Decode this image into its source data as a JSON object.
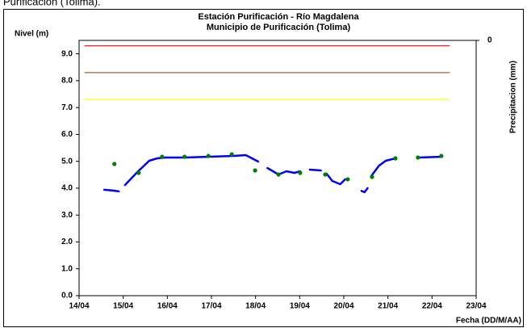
{
  "caption": "Purificación (Tolima).",
  "chart_data": {
    "type": "line",
    "title": [
      "Estación Purificación - Río Magdalena",
      "Municipio de Purificación (Tolima)"
    ],
    "y_label": "Nivel (m)",
    "y2_label": "Precipitacion (mm)",
    "x_label": "Fecha (DD/M/AA)",
    "xlim": [
      14,
      23
    ],
    "xticks": [
      {
        "value": 14,
        "label": "14/04"
      },
      {
        "value": 15,
        "label": "15/04"
      },
      {
        "value": 16,
        "label": "16/04"
      },
      {
        "value": 17,
        "label": "17/04"
      },
      {
        "value": 18,
        "label": "18/04"
      },
      {
        "value": 19,
        "label": "19/04"
      },
      {
        "value": 20,
        "label": "20/04"
      },
      {
        "value": 21,
        "label": "21/04"
      },
      {
        "value": 22,
        "label": "22/04"
      },
      {
        "value": 23,
        "label": "23/04"
      }
    ],
    "ylim": [
      0,
      9.5
    ],
    "yticks": [
      {
        "value": 0,
        "label": "0.0"
      },
      {
        "value": 1,
        "label": "1.0"
      },
      {
        "value": 2,
        "label": "2.0"
      },
      {
        "value": 3,
        "label": "3.0"
      },
      {
        "value": 4,
        "label": "4.0"
      },
      {
        "value": 5,
        "label": "5.0"
      },
      {
        "value": 6,
        "label": "6.0"
      },
      {
        "value": 7,
        "label": "7.0"
      },
      {
        "value": 8,
        "label": "8.0"
      },
      {
        "value": 9,
        "label": "9.0"
      }
    ],
    "y2ticks": [
      0
    ],
    "y2_inverted": true,
    "grid": false,
    "series": [
      {
        "color": "#ff0000",
        "style": "line",
        "x": [
          14.13,
          22.39
        ],
        "values": [
          9.3,
          9.3
        ]
      },
      {
        "color": "#996633",
        "style": "line",
        "x": [
          14.13,
          22.39
        ],
        "values": [
          8.3,
          8.3
        ]
      },
      {
        "color": "#ffff00",
        "style": "line",
        "x": [
          14.13,
          22.39
        ],
        "values": [
          7.3,
          7.3
        ]
      },
      {
        "color": "#0000ff",
        "style": "line",
        "x": [
          14.57,
          14.77,
          14.9,
          14.95,
          15.04,
          15.32,
          15.59,
          15.77,
          15.96,
          16.41,
          16.96,
          17.51,
          17.78,
          18.06,
          18.2,
          18.27,
          18.52,
          18.7,
          18.88,
          19.01,
          19.12,
          19.23,
          19.48,
          19.55,
          19.61,
          19.74,
          19.92,
          20.03,
          20.2,
          20.4,
          20.47,
          20.54,
          20.58,
          20.62,
          20.8,
          20.95,
          21.17,
          21.4,
          21.71,
          22.23
        ],
        "values": [
          3.94,
          3.91,
          3.88,
          null,
          4.12,
          4.6,
          5.02,
          5.11,
          5.14,
          5.14,
          5.17,
          5.2,
          5.23,
          4.99,
          null,
          4.75,
          4.51,
          4.63,
          4.57,
          4.63,
          null,
          4.69,
          4.66,
          null,
          4.54,
          4.27,
          4.15,
          4.33,
          null,
          3.9,
          3.85,
          4.0,
          null,
          4.45,
          4.84,
          5.02,
          5.11,
          null,
          5.14,
          5.17
        ]
      },
      {
        "color": "#008000",
        "style": "points",
        "x": [
          14.8,
          15.35,
          15.88,
          16.39,
          16.93,
          17.46,
          17.99,
          18.52,
          19.01,
          19.58,
          20.09,
          20.64,
          21.17,
          21.68,
          22.21
        ],
        "values": [
          4.9,
          4.57,
          5.17,
          5.17,
          5.2,
          5.26,
          4.66,
          4.51,
          4.57,
          4.51,
          4.33,
          4.42,
          5.11,
          5.14,
          5.2
        ]
      }
    ]
  }
}
